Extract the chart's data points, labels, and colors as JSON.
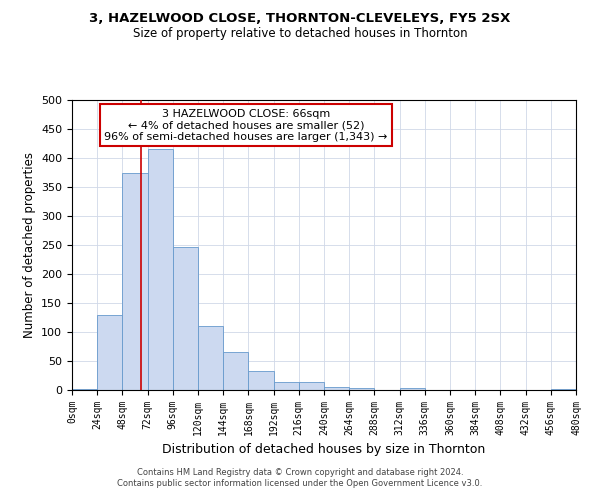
{
  "title": "3, HAZELWOOD CLOSE, THORNTON-CLEVELEYS, FY5 2SX",
  "subtitle": "Size of property relative to detached houses in Thornton",
  "xlabel": "Distribution of detached houses by size in Thornton",
  "ylabel": "Number of detached properties",
  "bin_edges": [
    0,
    24,
    48,
    72,
    96,
    120,
    144,
    168,
    192,
    216,
    240,
    264,
    288,
    312,
    336,
    360,
    384,
    408,
    432,
    456,
    480
  ],
  "bar_heights": [
    2,
    130,
    375,
    415,
    247,
    110,
    65,
    32,
    14,
    14,
    6,
    4,
    0,
    4,
    0,
    0,
    0,
    0,
    0,
    2
  ],
  "bar_color": "#ccd9f0",
  "bar_edge_color": "#6699cc",
  "vline_x": 66,
  "vline_color": "#cc0000",
  "annotation_title": "3 HAZELWOOD CLOSE: 66sqm",
  "annotation_line1": "← 4% of detached houses are smaller (52)",
  "annotation_line2": "96% of semi-detached houses are larger (1,343) →",
  "annotation_box_edge": "#cc0000",
  "tick_labels": [
    "0sqm",
    "24sqm",
    "48sqm",
    "72sqm",
    "96sqm",
    "120sqm",
    "144sqm",
    "168sqm",
    "192sqm",
    "216sqm",
    "240sqm",
    "264sqm",
    "288sqm",
    "312sqm",
    "336sqm",
    "360sqm",
    "384sqm",
    "408sqm",
    "432sqm",
    "456sqm",
    "480sqm"
  ],
  "ylim": [
    0,
    500
  ],
  "yticks": [
    0,
    50,
    100,
    150,
    200,
    250,
    300,
    350,
    400,
    450,
    500
  ],
  "footer_line1": "Contains HM Land Registry data © Crown copyright and database right 2024.",
  "footer_line2": "Contains public sector information licensed under the Open Government Licence v3.0.",
  "background_color": "#ffffff",
  "grid_color": "#d0d8e8"
}
